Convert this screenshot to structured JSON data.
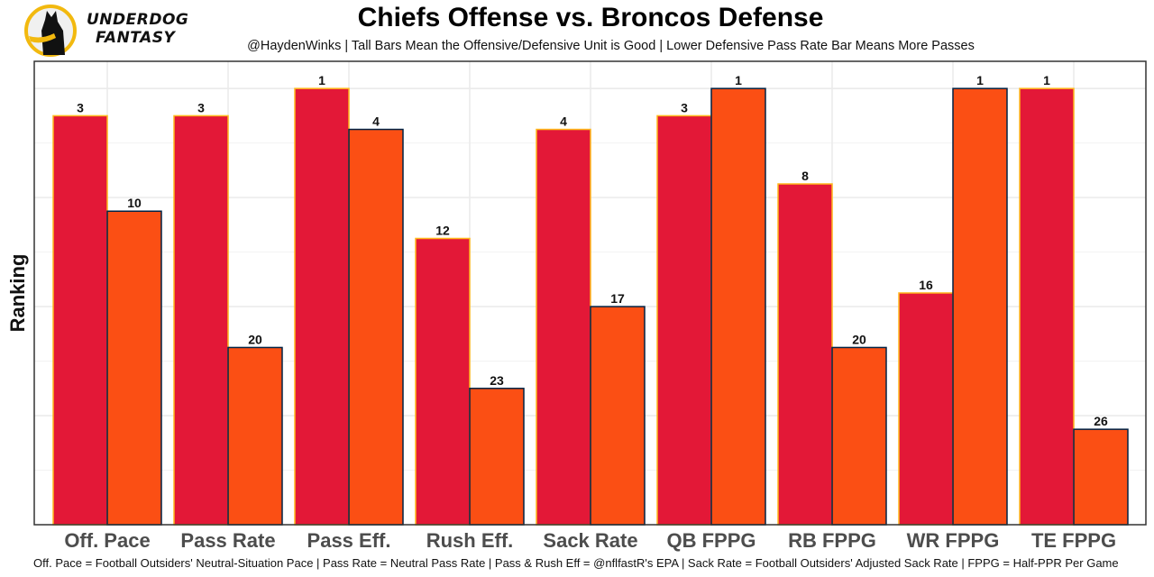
{
  "brand": {
    "line1": "UNDERDOG",
    "line2": "FANTASY",
    "logo_icon": "underdog-dog-logo-icon",
    "colors": {
      "ring": "#f2b90f",
      "dog": "#111111"
    }
  },
  "chart_data": {
    "type": "bar",
    "title": "Chiefs Offense vs. Broncos Defense",
    "subtitle": "@HaydenWinks | Tall Bars Mean the Offensive/Defensive Unit is Good | Lower Defensive Pass Rate Bar Means More Passes",
    "xlabel": "",
    "ylabel": "Ranking",
    "caption": "Off. Pace = Football Outsiders' Neutral-Situation Pace | Pass Rate = Neutral Pass Rate | Pass & Rush Eff = @nflfastR's EPA | Sack Rate = Football Outsiders' Adjusted Sack Rate | FPPG = Half-PPR Per Game",
    "categories": [
      "Off. Pace",
      "Pass Rate",
      "Pass Eff.",
      "Rush Eff.",
      "Sack Rate",
      "QB FPPG",
      "RB FPPG",
      "WR FPPG",
      "TE FPPG"
    ],
    "series": [
      {
        "name": "Chiefs Offense",
        "color": "#e31837",
        "border": "#ffb81c",
        "values": [
          3,
          3,
          1,
          12,
          4,
          3,
          8,
          16,
          1
        ]
      },
      {
        "name": "Broncos Defense",
        "color": "#fb4f14",
        "border": "#002244",
        "values": [
          10,
          20,
          4,
          23,
          17,
          1,
          20,
          1,
          26
        ]
      }
    ],
    "scale_note": "Bar height = 33 - rank (rank 1 tallest); y axis ticks hidden",
    "rank_max": 32,
    "grid": true,
    "legend": "none"
  }
}
